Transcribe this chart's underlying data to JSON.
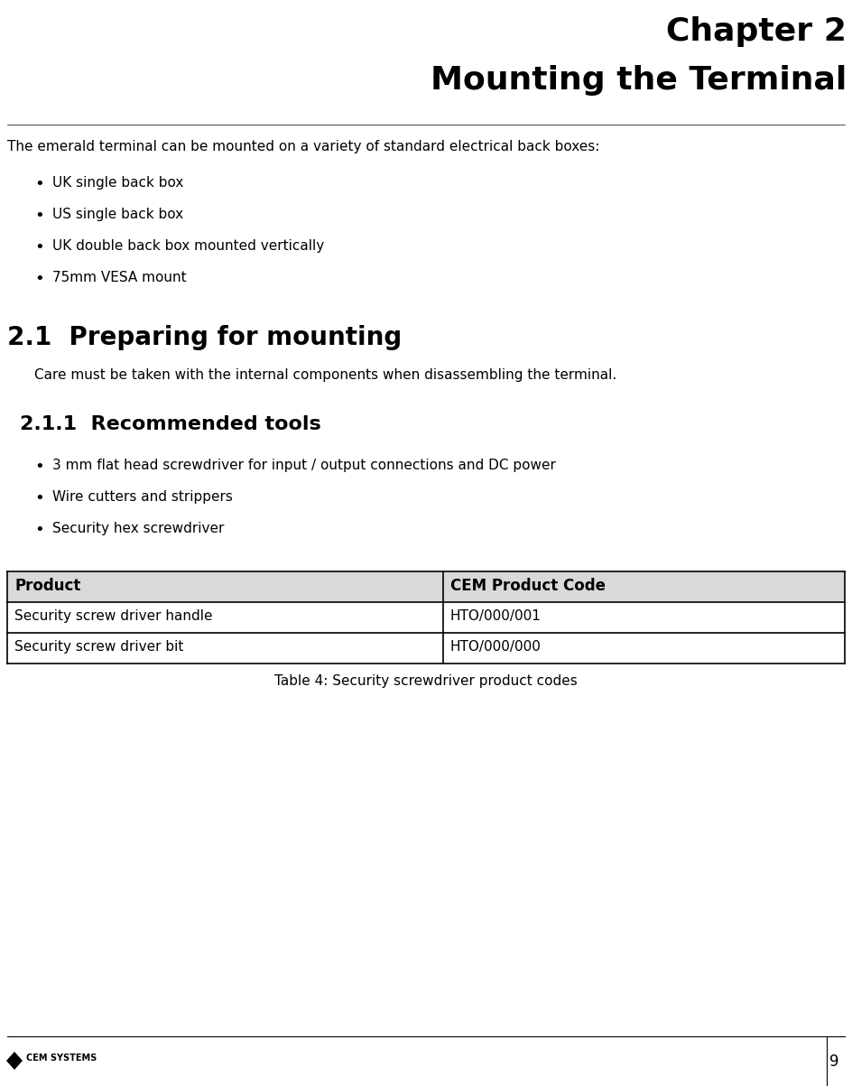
{
  "chapter_label": "Chapter 2",
  "chapter_title": "Mounting the Terminal",
  "intro_text": "The emerald terminal can be mounted on a variety of standard electrical back boxes:",
  "bullet_items": [
    "UK single back box",
    "US single back box",
    "UK double back box mounted vertically",
    "75mm VESA mount"
  ],
  "section_21_title": "2.1  Preparing for mounting",
  "section_21_body": "Care must be taken with the internal components when disassembling the terminal.",
  "section_211_title": "2.1.1  Recommended tools",
  "section_211_bullets": [
    "3 mm flat head screwdriver for input / output connections and DC power",
    "Wire cutters and strippers",
    "Security hex screwdriver"
  ],
  "table_header": [
    "Product",
    "CEM Product Code"
  ],
  "table_rows": [
    [
      "Security screw driver handle",
      "HTO/000/001"
    ],
    [
      "Security screw driver bit",
      "HTO/000/000"
    ]
  ],
  "table_caption": "Table 4: Security screwdriver product codes",
  "footer_text": "CEM SYSTEMS",
  "page_number": "9",
  "bg_color": "#ffffff",
  "text_color": "#000000",
  "header_bg": "#d9d9d9",
  "table_border_color": "#000000"
}
